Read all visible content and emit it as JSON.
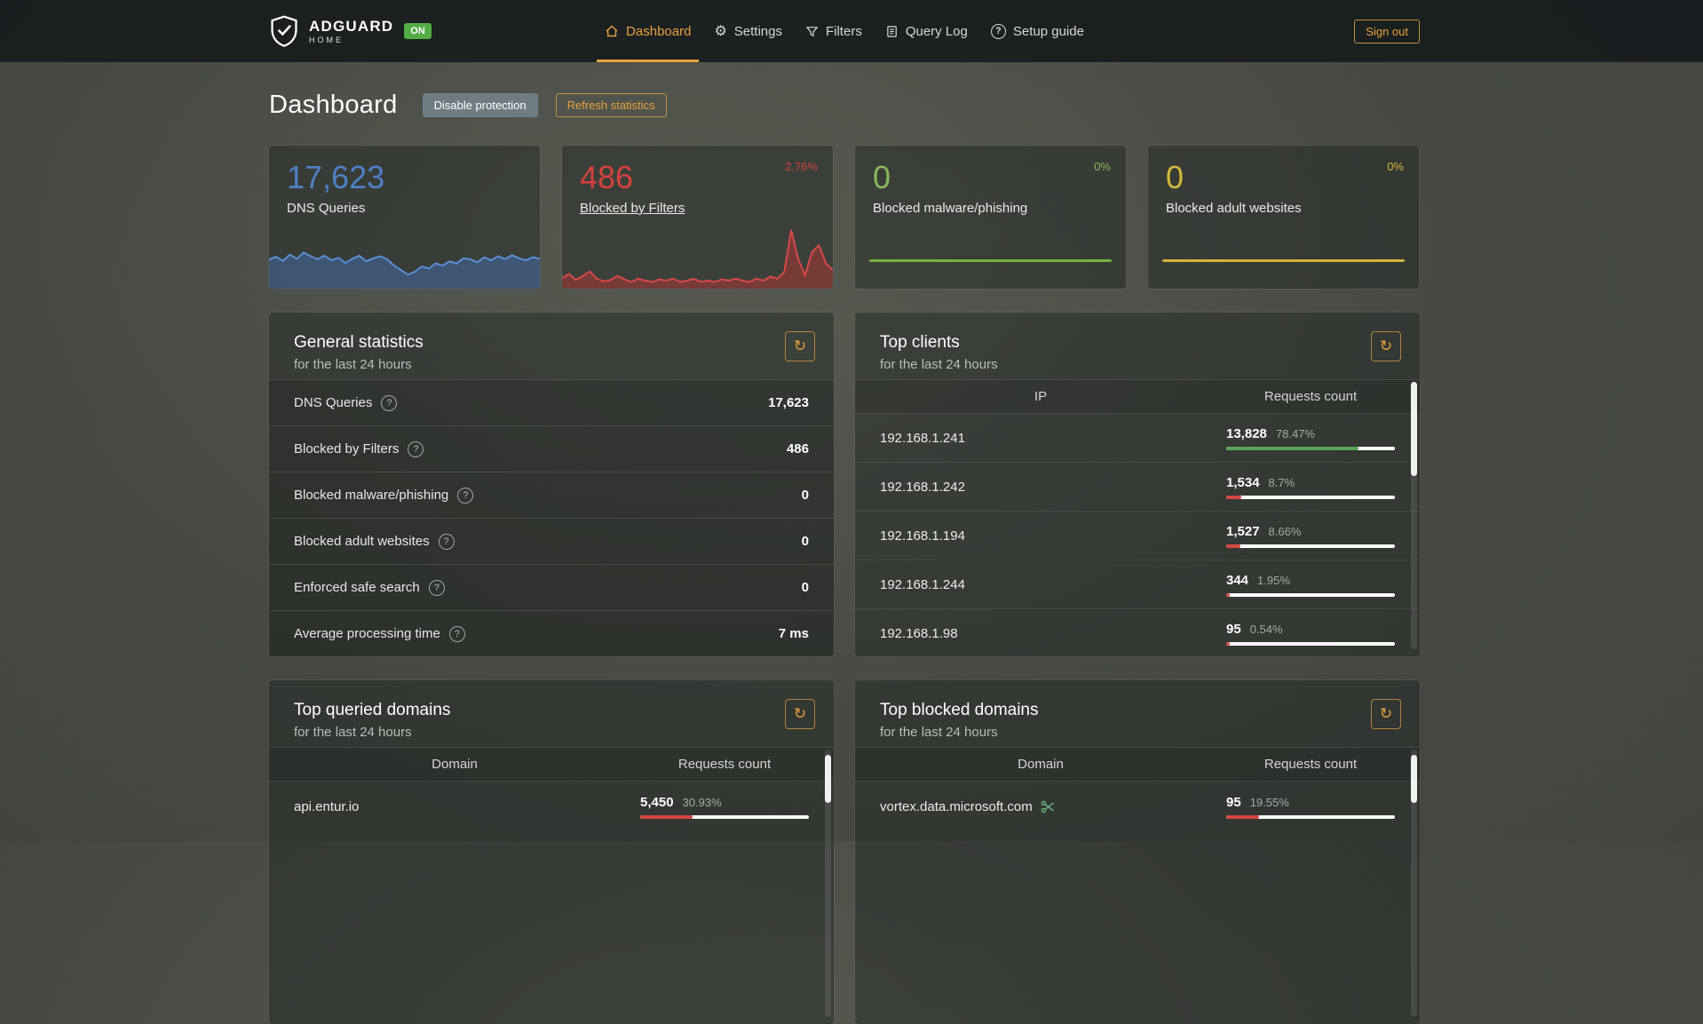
{
  "colors": {
    "accent": "#e9a13e",
    "on_badge": "#52ae43",
    "bar_remainder": "#ffffff"
  },
  "header": {
    "brand": {
      "name": "ADGUARD",
      "sub": "HOME",
      "badge": "ON"
    },
    "nav": [
      {
        "label": "Dashboard",
        "icon": "home-icon",
        "active": true
      },
      {
        "label": "Settings",
        "icon": "gear-icon",
        "active": false
      },
      {
        "label": "Filters",
        "icon": "funnel-icon",
        "active": false
      },
      {
        "label": "Query Log",
        "icon": "document-icon",
        "active": false
      },
      {
        "label": "Setup guide",
        "icon": "question-circle-icon",
        "active": false
      }
    ],
    "signout_label": "Sign out"
  },
  "page": {
    "title": "Dashboard",
    "disable_protection_label": "Disable protection",
    "refresh_statistics_label": "Refresh statistics"
  },
  "stat_cards": [
    {
      "value": "17,623",
      "label": "DNS Queries",
      "percent": "",
      "value_color": "#4d80c6",
      "percent_color": "#4d80c6",
      "stroke": "#5a8fd6",
      "fill": "rgba(72,118,188,0.45)",
      "spark": [
        56,
        62,
        54,
        66,
        58,
        70,
        63,
        57,
        64,
        55,
        60,
        50,
        58,
        64,
        53,
        59,
        63,
        57,
        45,
        36,
        27,
        33,
        43,
        39,
        49,
        45,
        53,
        49,
        59,
        57,
        51,
        61,
        55,
        63,
        57,
        65,
        59,
        55,
        61,
        58
      ]
    },
    {
      "value": "486",
      "label": "Blocked by Filters",
      "percent": "2.76%",
      "value_color": "#d6413c",
      "percent_color": "#d6413c",
      "stroke": "#d94848",
      "fill": "rgba(193,54,54,0.45)",
      "spark": [
        16,
        22,
        13,
        19,
        26,
        15,
        11,
        13,
        19,
        14,
        10,
        15,
        12,
        10,
        14,
        12,
        15,
        10,
        12,
        15,
        10,
        12,
        10,
        14,
        12,
        15,
        12,
        10,
        15,
        12,
        18,
        15,
        25,
        88,
        45,
        20,
        55,
        65,
        38,
        28
      ]
    },
    {
      "value": "0",
      "label": "Blocked malware/phishing",
      "percent": "0%",
      "value_color": "#86b858",
      "percent_color": "#86b858",
      "line_color": "#74b43c"
    },
    {
      "value": "0",
      "label": "Blocked adult websites",
      "percent": "0%",
      "value_color": "#d4b73c",
      "percent_color": "#d4b73c",
      "line_color": "#d4b23a"
    }
  ],
  "general_stats": {
    "title": "General statistics",
    "subtitle": "for the last 24 hours",
    "rows": [
      {
        "label": "DNS Queries",
        "value": "17,623"
      },
      {
        "label": "Blocked by Filters",
        "value": "486"
      },
      {
        "label": "Blocked malware/phishing",
        "value": "0"
      },
      {
        "label": "Blocked adult websites",
        "value": "0"
      },
      {
        "label": "Enforced safe search",
        "value": "0"
      },
      {
        "label": "Average processing time",
        "value": "7 ms"
      }
    ]
  },
  "top_clients": {
    "title": "Top clients",
    "subtitle": "for the last 24 hours",
    "columns": [
      "IP",
      "Requests count"
    ],
    "rows": [
      {
        "name": "192.168.1.241",
        "count": "13,828",
        "percent": "78.47%",
        "pct": 78.47,
        "bar_color": "#57a556"
      },
      {
        "name": "192.168.1.242",
        "count": "1,534",
        "percent": "8.7%",
        "pct": 8.7,
        "bar_color": "#d64540"
      },
      {
        "name": "192.168.1.194",
        "count": "1,527",
        "percent": "8.66%",
        "pct": 8.66,
        "bar_color": "#d64540"
      },
      {
        "name": "192.168.1.244",
        "count": "344",
        "percent": "1.95%",
        "pct": 1.95,
        "bar_color": "#d64540"
      },
      {
        "name": "192.168.1.98",
        "count": "95",
        "percent": "0.54%",
        "pct": 0.54,
        "bar_color": "#d64540"
      }
    ]
  },
  "top_queried_domains": {
    "title": "Top queried domains",
    "subtitle": "for the last 24 hours",
    "columns": [
      "Domain",
      "Requests count"
    ],
    "rows": [
      {
        "name": "api.entur.io",
        "count": "5,450",
        "percent": "30.93%",
        "pct": 30.93,
        "bar_color": "#d64540"
      }
    ]
  },
  "top_blocked_domains": {
    "title": "Top blocked domains",
    "subtitle": "for the last 24 hours",
    "columns": [
      "Domain",
      "Requests count"
    ],
    "rows": [
      {
        "name": "vortex.data.microsoft.com",
        "count": "95",
        "percent": "19.55%",
        "pct": 19.55,
        "bar_color": "#d64540",
        "tracker_icon": "scissors-icon"
      }
    ]
  }
}
